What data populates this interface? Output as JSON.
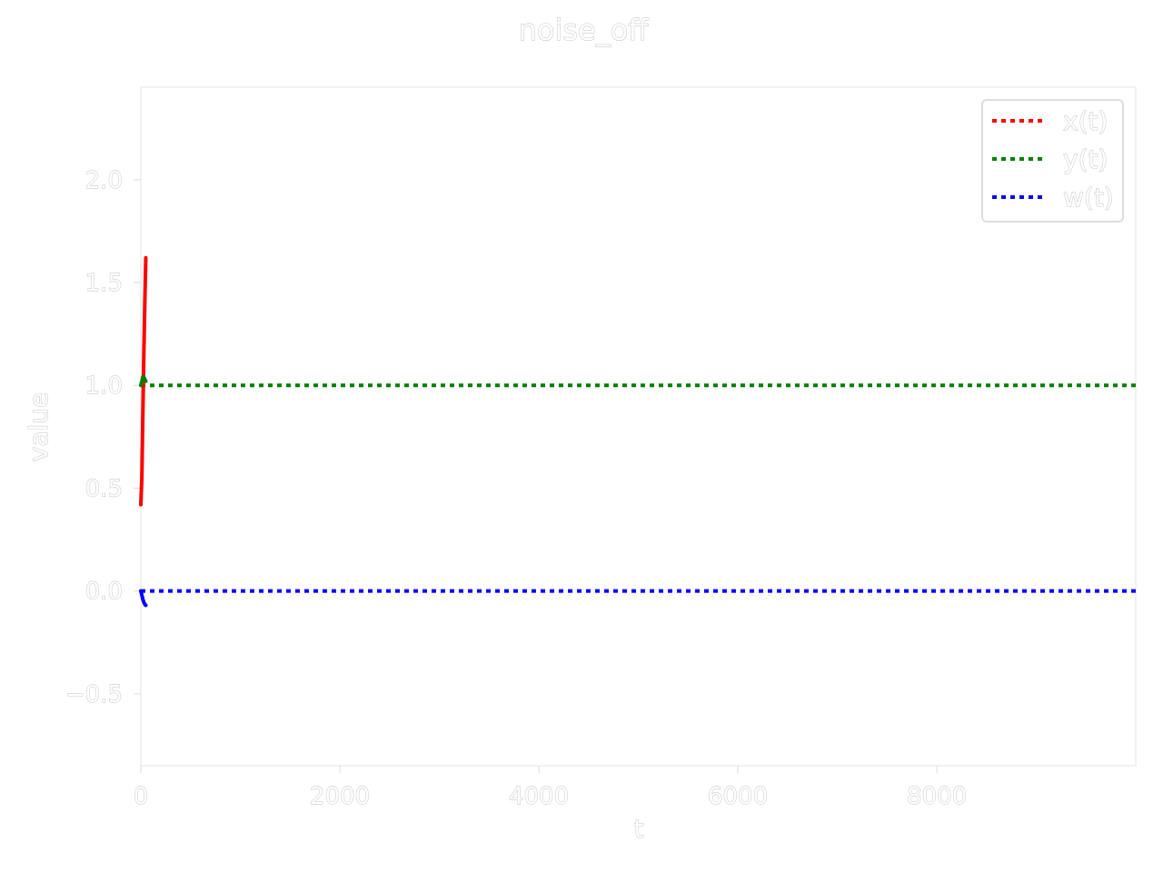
{
  "chart_data": {
    "type": "line",
    "title": "noise_off",
    "xlabel": "t",
    "ylabel": "value",
    "xlim": [
      0,
      9999
    ],
    "ylim": [
      -0.85,
      2.45
    ],
    "xticks": [
      0,
      2000,
      4000,
      6000,
      8000
    ],
    "xtick_labels": [
      "0",
      "2000",
      "4000",
      "6000",
      "8000"
    ],
    "yticks": [
      -0.5,
      0.0,
      0.5,
      1.0,
      1.5,
      2.0
    ],
    "ytick_labels": [
      "−0.5",
      "0.0",
      "0.5",
      "1.0",
      "1.5",
      "2.0"
    ],
    "grid": false,
    "legend_position": "top-right",
    "series": [
      {
        "name": "x(t)",
        "color": "#ff0000",
        "trajectory": {
          "x": [
            0,
            10,
            20,
            30,
            40,
            50
          ],
          "y": [
            0.42,
            0.55,
            0.85,
            1.15,
            1.4,
            1.62
          ]
        },
        "steady_state": 1.62,
        "steady_state_drawn": false
      },
      {
        "name": "y(t)",
        "color": "#008000",
        "trajectory": {
          "x": [
            0,
            10,
            20,
            30,
            40,
            50
          ],
          "y": [
            1.0,
            1.02,
            1.04,
            1.04,
            1.03,
            1.02
          ]
        },
        "steady_state": 1.0,
        "steady_state_drawn": true
      },
      {
        "name": "w(t)",
        "color": "#0000ff",
        "trajectory": {
          "x": [
            0,
            10,
            20,
            30,
            40,
            50
          ],
          "y": [
            0.0,
            -0.02,
            -0.04,
            -0.055,
            -0.065,
            -0.07
          ]
        },
        "steady_state": 0.0,
        "steady_state_drawn": true
      }
    ]
  }
}
